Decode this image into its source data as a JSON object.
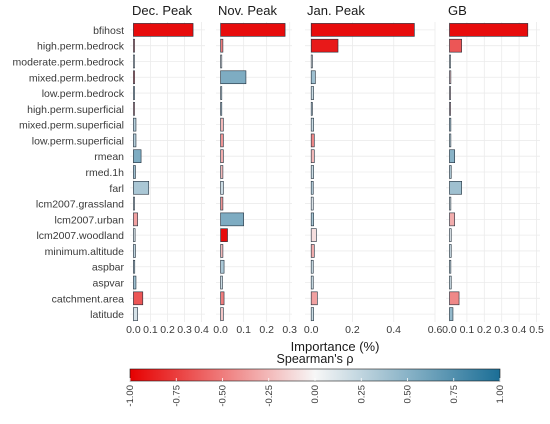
{
  "chart_data": {
    "type": "bar",
    "orientation": "horizontal",
    "categories": [
      "bfihost",
      "high.perm.bedrock",
      "moderate.perm.bedrock",
      "mixed.perm.bedrock",
      "low.perm.bedrock",
      "high.perm.superficial",
      "mixed.perm.superficial",
      "low.perm.superficial",
      "rmean",
      "rmed.1h",
      "farl",
      "lcm2007.grassland",
      "lcm2007.urban",
      "lcm2007.woodland",
      "minimum.altitude",
      "aspbar",
      "aspvar",
      "catchment.area",
      "latitude"
    ],
    "xlabel": "Importance (%)",
    "grid": true,
    "legend": {
      "title": "Spearman's ρ",
      "placement": "bottom",
      "range": [
        -1,
        1
      ],
      "ticks": [
        "-1.00",
        "-0.75",
        "-0.50",
        "-0.25",
        "0.00",
        "0.25",
        "0.50",
        "0.75",
        "1.00"
      ],
      "colors": {
        "low": "#e60000",
        "mid": "#f7f7f7",
        "high": "#1b6e96"
      }
    },
    "panels": [
      {
        "title": "Dec. Peak",
        "xlim": [
          -0.02,
          0.42
        ],
        "ticks": [
          0.0,
          0.1,
          0.2,
          0.3,
          0.4
        ],
        "tick_labels": [
          "0.0",
          "0.1",
          "0.2",
          "0.3",
          "0.4"
        ],
        "values": [
          0.35,
          0.005,
          0.003,
          0.004,
          0.004,
          0.005,
          0.015,
          0.015,
          0.045,
          0.012,
          0.09,
          0.005,
          0.025,
          0.01,
          0.012,
          0.008,
          0.015,
          0.055,
          0.025
        ],
        "rho": [
          -0.95,
          -0.4,
          0.0,
          -0.5,
          0.2,
          -0.3,
          0.3,
          0.3,
          0.55,
          0.4,
          0.35,
          0.1,
          -0.35,
          0.1,
          0.25,
          0.25,
          0.4,
          -0.65,
          0.15
        ]
      },
      {
        "title": "Nov. Peak",
        "xlim": [
          -0.02,
          0.31
        ],
        "ticks": [
          0.0,
          0.1,
          0.2,
          0.3
        ],
        "tick_labels": [
          "0.0",
          "0.1",
          "0.2",
          "0.3"
        ],
        "values": [
          0.28,
          0.01,
          0.003,
          0.11,
          0.003,
          0.005,
          0.012,
          0.012,
          0.012,
          0.01,
          0.012,
          0.01,
          0.1,
          0.03,
          0.01,
          0.015,
          0.008,
          0.015,
          0.012
        ],
        "rho": [
          -0.95,
          -0.5,
          0.0,
          0.55,
          0.2,
          0.3,
          -0.25,
          -0.4,
          -0.3,
          -0.25,
          0.2,
          -0.4,
          0.55,
          -0.95,
          -0.25,
          0.35,
          0.2,
          -0.5,
          -0.2
        ]
      },
      {
        "title": "Jan. Peak",
        "xlim": [
          -0.03,
          0.6
        ],
        "ticks": [
          0.0,
          0.2,
          0.4,
          0.6
        ],
        "tick_labels": [
          "0.0",
          "0.2",
          "0.4",
          "0.6"
        ],
        "values": [
          0.5,
          0.13,
          0.004,
          0.02,
          0.012,
          0.005,
          0.012,
          0.015,
          0.015,
          0.012,
          0.01,
          0.01,
          0.012,
          0.025,
          0.015,
          0.01,
          0.01,
          0.03,
          0.012
        ],
        "rho": [
          -0.95,
          -0.9,
          0.0,
          0.4,
          0.2,
          0.25,
          0.2,
          -0.45,
          -0.25,
          0.2,
          0.3,
          0.1,
          0.35,
          -0.1,
          -0.3,
          0.2,
          0.2,
          -0.35,
          0.2
        ]
      },
      {
        "title": "GB",
        "xlim": [
          -0.02,
          0.52
        ],
        "ticks": [
          0.0,
          0.1,
          0.2,
          0.3,
          0.4,
          0.5
        ],
        "tick_labels": [
          "0.0",
          "0.1",
          "0.2",
          "0.3",
          "0.4",
          "0.5"
        ],
        "values": [
          0.45,
          0.07,
          0.004,
          0.008,
          0.005,
          0.003,
          0.008,
          0.008,
          0.03,
          0.01,
          0.07,
          0.008,
          0.03,
          0.01,
          0.01,
          0.008,
          0.01,
          0.055,
          0.02
        ],
        "rho": [
          -0.95,
          -0.65,
          0.0,
          -0.2,
          -0.15,
          -0.2,
          0.3,
          0.2,
          0.5,
          0.3,
          0.4,
          0.1,
          -0.3,
          0.1,
          0.2,
          0.2,
          0.2,
          -0.45,
          0.45
        ]
      }
    ]
  }
}
